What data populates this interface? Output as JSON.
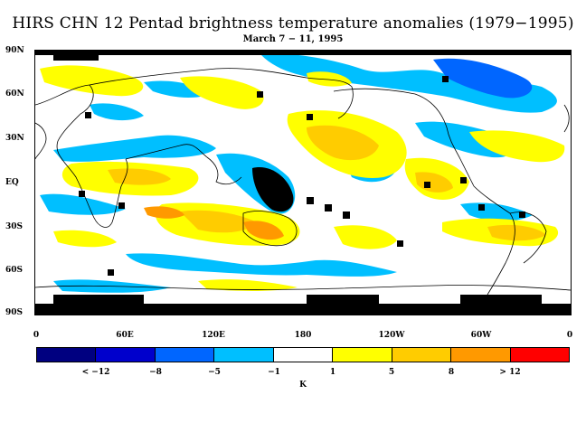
{
  "title": "HIRS CHN 12 Pentad brightness temperature anomalies (1979−1995)",
  "subtitle": "March 7 − 11, 1995",
  "y_axis_labels": [
    "90N",
    "60N",
    "30N",
    "EQ",
    "30S",
    "60S",
    "90S"
  ],
  "x_axis_labels": [
    "0",
    "60E",
    "120E",
    "180",
    "120W",
    "60W",
    "0"
  ],
  "colorbar": {
    "colors": [
      "#000080",
      "#0000cc",
      "#0066ff",
      "#00bfff",
      "#ffffff",
      "#ffff00",
      "#ffcc00",
      "#ff9900",
      "#ff5500",
      "#ff0000"
    ],
    "labels": [
      "< −12",
      "−8",
      "−5",
      "−1",
      "1",
      "5",
      "8",
      "> 12"
    ],
    "units": "K"
  }
}
